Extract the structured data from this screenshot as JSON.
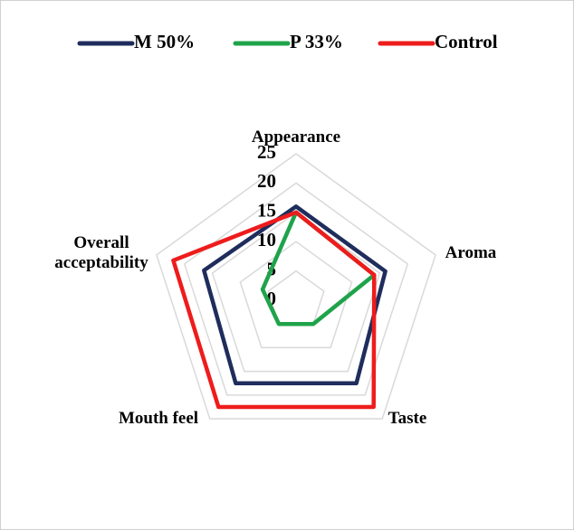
{
  "chart_data": {
    "type": "radar",
    "categories": [
      "Appearance",
      "Aroma",
      "Taste",
      "Mouth feel",
      "Overall acceptability"
    ],
    "series": [
      {
        "name": "M 50%",
        "color": "#1f2d5c",
        "values": [
          16,
          16,
          17.5,
          17.5,
          16.5
        ]
      },
      {
        "name": "P 33%",
        "color": "#1fa34a",
        "values": [
          15,
          14,
          5,
          5,
          6
        ]
      },
      {
        "name": "Control",
        "color": "#ee1c1c",
        "values": [
          15,
          14,
          22.5,
          22.5,
          22
        ]
      }
    ],
    "ylim": [
      0,
      25
    ],
    "yticks": [
      0,
      5,
      10,
      15,
      20,
      25
    ],
    "grid": true,
    "legend": "top"
  }
}
